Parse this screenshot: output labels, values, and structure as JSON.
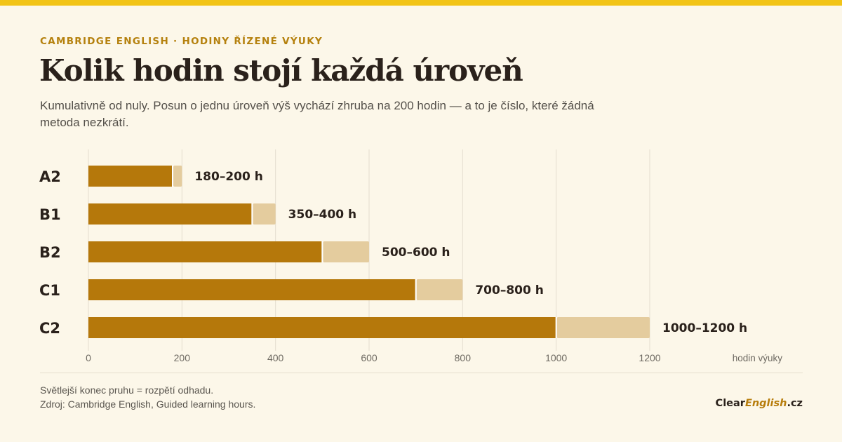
{
  "header": {
    "eyebrow": "CAMBRIDGE ENGLISH · HODINY ŘÍZENÉ VÝUKY",
    "title": "Kolik hodin stojí každá úroveň",
    "subtitle": "Kumulativně od nuly. Posun o jednu úroveň výš vychází zhruba na 200 hodin — a to je číslo, které žádná metoda nezkrátí."
  },
  "footer": {
    "note": "Světlejší konec pruhu = rozpětí odhadu.",
    "source": "Zdroj: Cambridge English, Guided learning hours.",
    "brand_part1": "Clear",
    "brand_part2": "English",
    "brand_part3": ".cz"
  },
  "colors": {
    "background": "#fcf7e9",
    "top_bar": "#f2c417",
    "bar_main": "#b5780b",
    "bar_range": "#e4cc9e",
    "eyebrow": "#b5810e"
  },
  "chart_data": {
    "type": "bar",
    "orientation": "horizontal",
    "stacked": true,
    "categories": [
      "A2",
      "B1",
      "B2",
      "C1",
      "C2"
    ],
    "series": [
      {
        "values": [
          180,
          350,
          500,
          700,
          1000
        ]
      },
      {
        "values": [
          20,
          50,
          100,
          100,
          200
        ]
      }
    ],
    "range_low": [
      180,
      350,
      500,
      700,
      1000
    ],
    "range_high": [
      200,
      400,
      600,
      800,
      1200
    ],
    "data_labels": [
      "180–200 h",
      "350–400 h",
      "500–600 h",
      "700–800 h",
      "1000–1200 h"
    ],
    "xlabel": "hodin výuky",
    "xlim": [
      0,
      1200
    ],
    "xticks": [
      0,
      200,
      400,
      600,
      800,
      1000,
      1200
    ],
    "xtick_labels": [
      "0",
      "200",
      "400",
      "600",
      "800",
      "1000",
      "1200"
    ],
    "grid": true
  }
}
